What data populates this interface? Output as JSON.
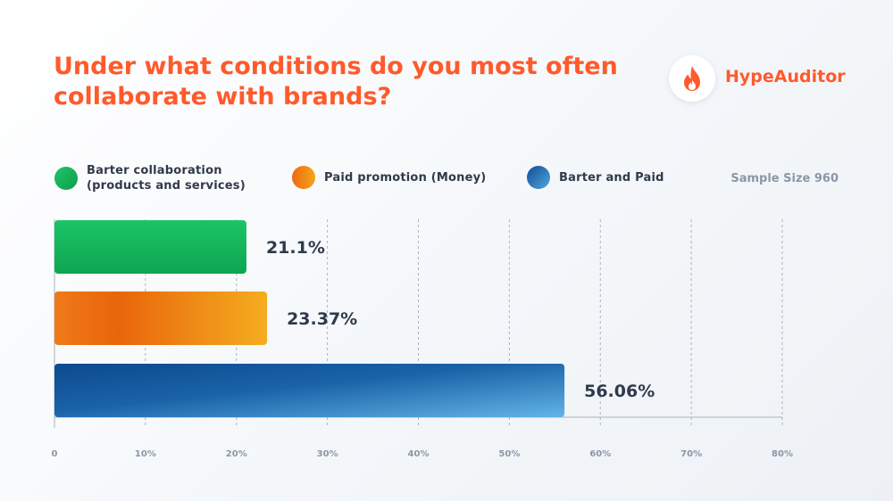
{
  "title": "Under what conditions do you most often collaborate with brands?",
  "brand": {
    "name": "HypeAuditor",
    "icon": "flame-icon",
    "color": "#ff5a2b"
  },
  "sample_size": "Sample Size 960",
  "legend": [
    {
      "label_line1": "Barter collaboration",
      "label_line2": "(products and services)"
    },
    {
      "label_line1": "Paid promotion (Money)",
      "label_line2": ""
    },
    {
      "label_line1": "Barter and Paid",
      "label_line2": ""
    }
  ],
  "chart_data": {
    "type": "bar",
    "orientation": "horizontal",
    "title": "Under what conditions do you most often collaborate with brands?",
    "xlabel": "",
    "ylabel": "",
    "xlim": [
      0,
      80
    ],
    "x_ticks": [
      0,
      10,
      20,
      30,
      40,
      50,
      60,
      70,
      80
    ],
    "x_tick_labels": [
      "0",
      "10%",
      "20%",
      "30%",
      "40%",
      "50%",
      "60%",
      "70%",
      "80%"
    ],
    "grid": "vertical dashed",
    "legend_position": "top",
    "categories": [
      "Barter collaboration (products and services)",
      "Paid promotion (Money)",
      "Barter and Paid"
    ],
    "values": [
      21.1,
      23.37,
      56.06
    ],
    "value_labels": [
      "21.1%",
      "23.37%",
      "56.06%"
    ],
    "colors": [
      "#12b85a",
      "#f08a16",
      "#1a5fa3"
    ]
  }
}
